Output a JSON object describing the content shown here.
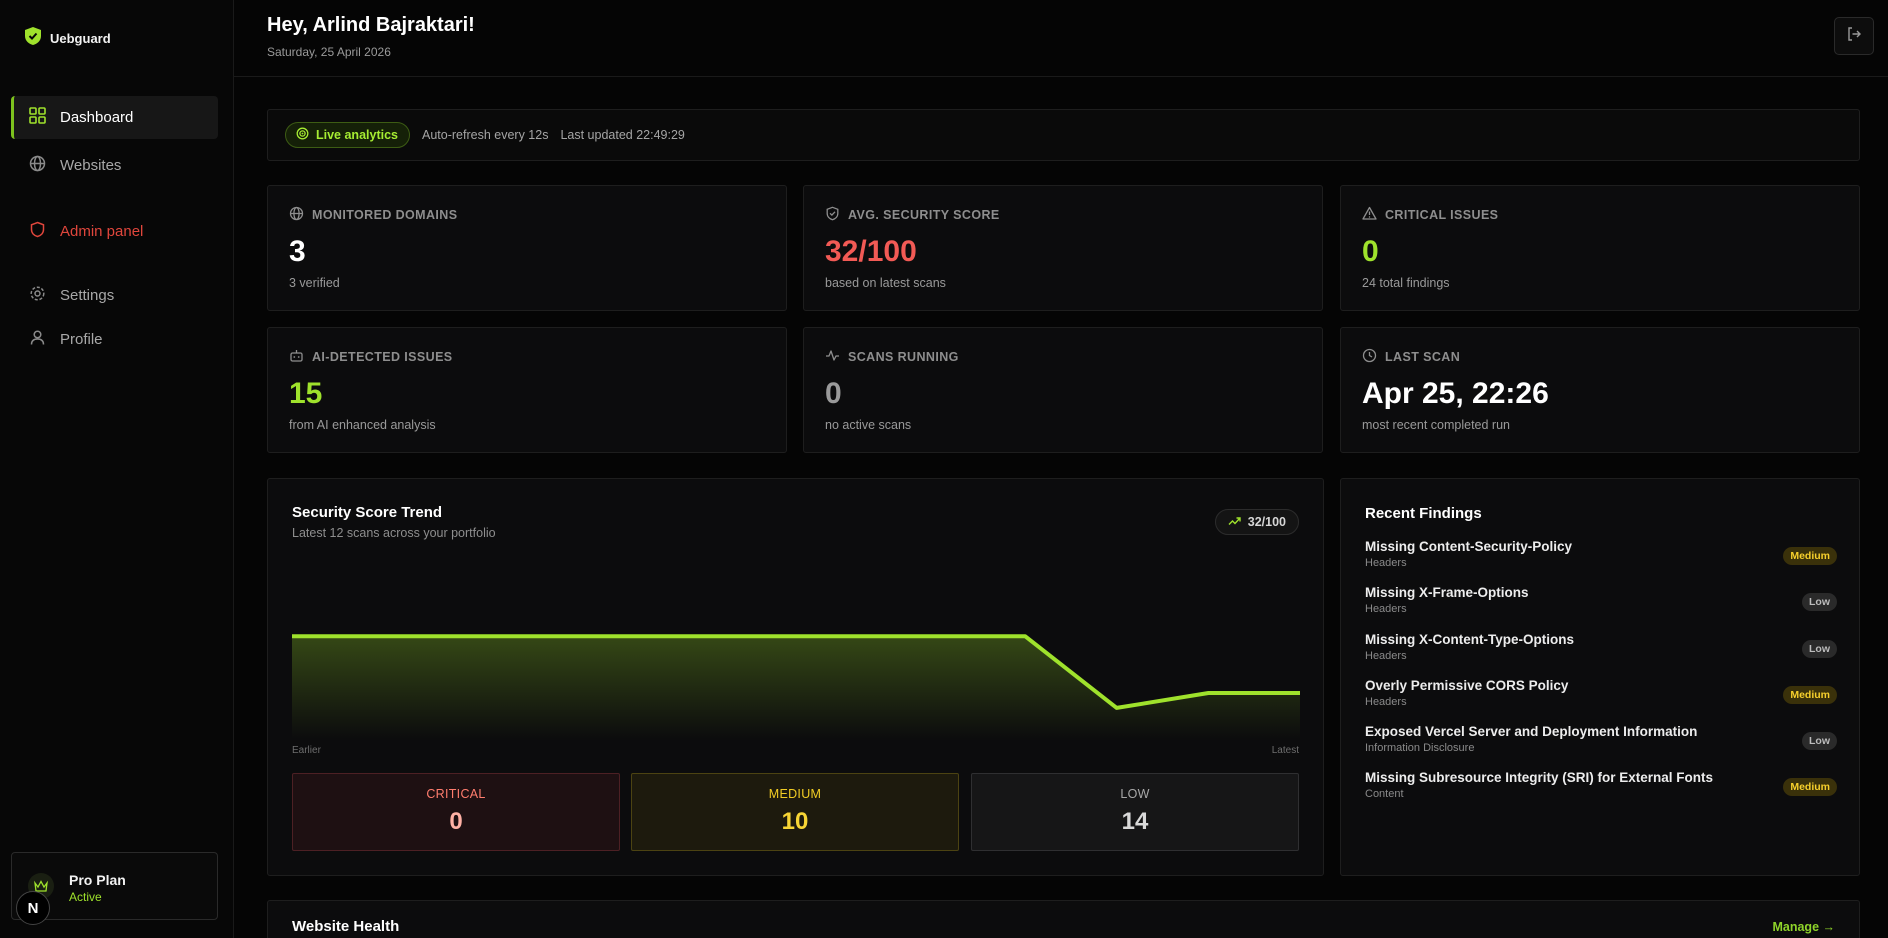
{
  "brand": {
    "name": "Uebguard"
  },
  "sidebar": {
    "items": [
      {
        "label": "Dashboard",
        "icon": "dashboard-grid-icon"
      },
      {
        "label": "Websites",
        "icon": "globe-icon"
      },
      {
        "label": "Admin panel",
        "icon": "shield-icon"
      },
      {
        "label": "Settings",
        "icon": "gear-icon"
      },
      {
        "label": "Profile",
        "icon": "user-icon"
      }
    ],
    "plan": {
      "name": "Pro Plan",
      "status": "Active"
    },
    "next_badge": "N"
  },
  "header": {
    "greeting": "Hey, Arlind Bajraktari!",
    "date": "Saturday, 25 April 2026"
  },
  "live": {
    "pill": "Live analytics",
    "refresh": "Auto-refresh every 12s",
    "updated": "Last updated 22:49:29"
  },
  "stats": [
    {
      "label": "MONITORED DOMAINS",
      "value": "3",
      "sub": "3 verified",
      "color": "#ffffff"
    },
    {
      "label": "AVG. SECURITY SCORE",
      "value": "32/100",
      "sub": "based on latest scans",
      "color": "#f25a55"
    },
    {
      "label": "CRITICAL ISSUES",
      "value": "0",
      "sub": "24 total findings",
      "color": "#9fe22c"
    },
    {
      "label": "AI-DETECTED ISSUES",
      "value": "15",
      "sub": "from AI enhanced analysis",
      "color": "#9fe22c"
    },
    {
      "label": "SCANS RUNNING",
      "value": "0",
      "sub": "no active scans",
      "color": "#9a9a9a"
    },
    {
      "label": "LAST SCAN",
      "value": "Apr 25, 22:26",
      "sub": "most recent completed run",
      "color": "#ffffff"
    }
  ],
  "trend": {
    "title": "Security Score Trend",
    "subtitle": "Latest 12 scans across your portfolio",
    "pill": "32/100",
    "axis_left": "Earlier",
    "axis_right": "Latest"
  },
  "chart_data": {
    "type": "area",
    "x": [
      1,
      2,
      3,
      4,
      5,
      6,
      7,
      8,
      9,
      10,
      11,
      12
    ],
    "values": [
      76,
      76,
      76,
      76,
      76,
      76,
      76,
      76,
      76,
      23,
      34,
      34
    ],
    "ylim": [
      0,
      100
    ],
    "color": "#9fe22c",
    "grid": false
  },
  "severity": [
    {
      "label": "CRITICAL",
      "value": "0"
    },
    {
      "label": "MEDIUM",
      "value": "10"
    },
    {
      "label": "LOW",
      "value": "14"
    }
  ],
  "findings": {
    "title": "Recent Findings",
    "items": [
      {
        "name": "Missing Content-Security-Policy",
        "category": "Headers",
        "severity": "Medium"
      },
      {
        "name": "Missing X-Frame-Options",
        "category": "Headers",
        "severity": "Low"
      },
      {
        "name": "Missing X-Content-Type-Options",
        "category": "Headers",
        "severity": "Low"
      },
      {
        "name": "Overly Permissive CORS Policy",
        "category": "Headers",
        "severity": "Medium"
      },
      {
        "name": "Exposed Vercel Server and Deployment Information",
        "category": "Information Disclosure",
        "severity": "Low"
      },
      {
        "name": "Missing Subresource Integrity (SRI) for External Fonts",
        "category": "Content",
        "severity": "Medium"
      }
    ]
  },
  "health": {
    "title": "Website Health",
    "manage": "Manage →"
  }
}
